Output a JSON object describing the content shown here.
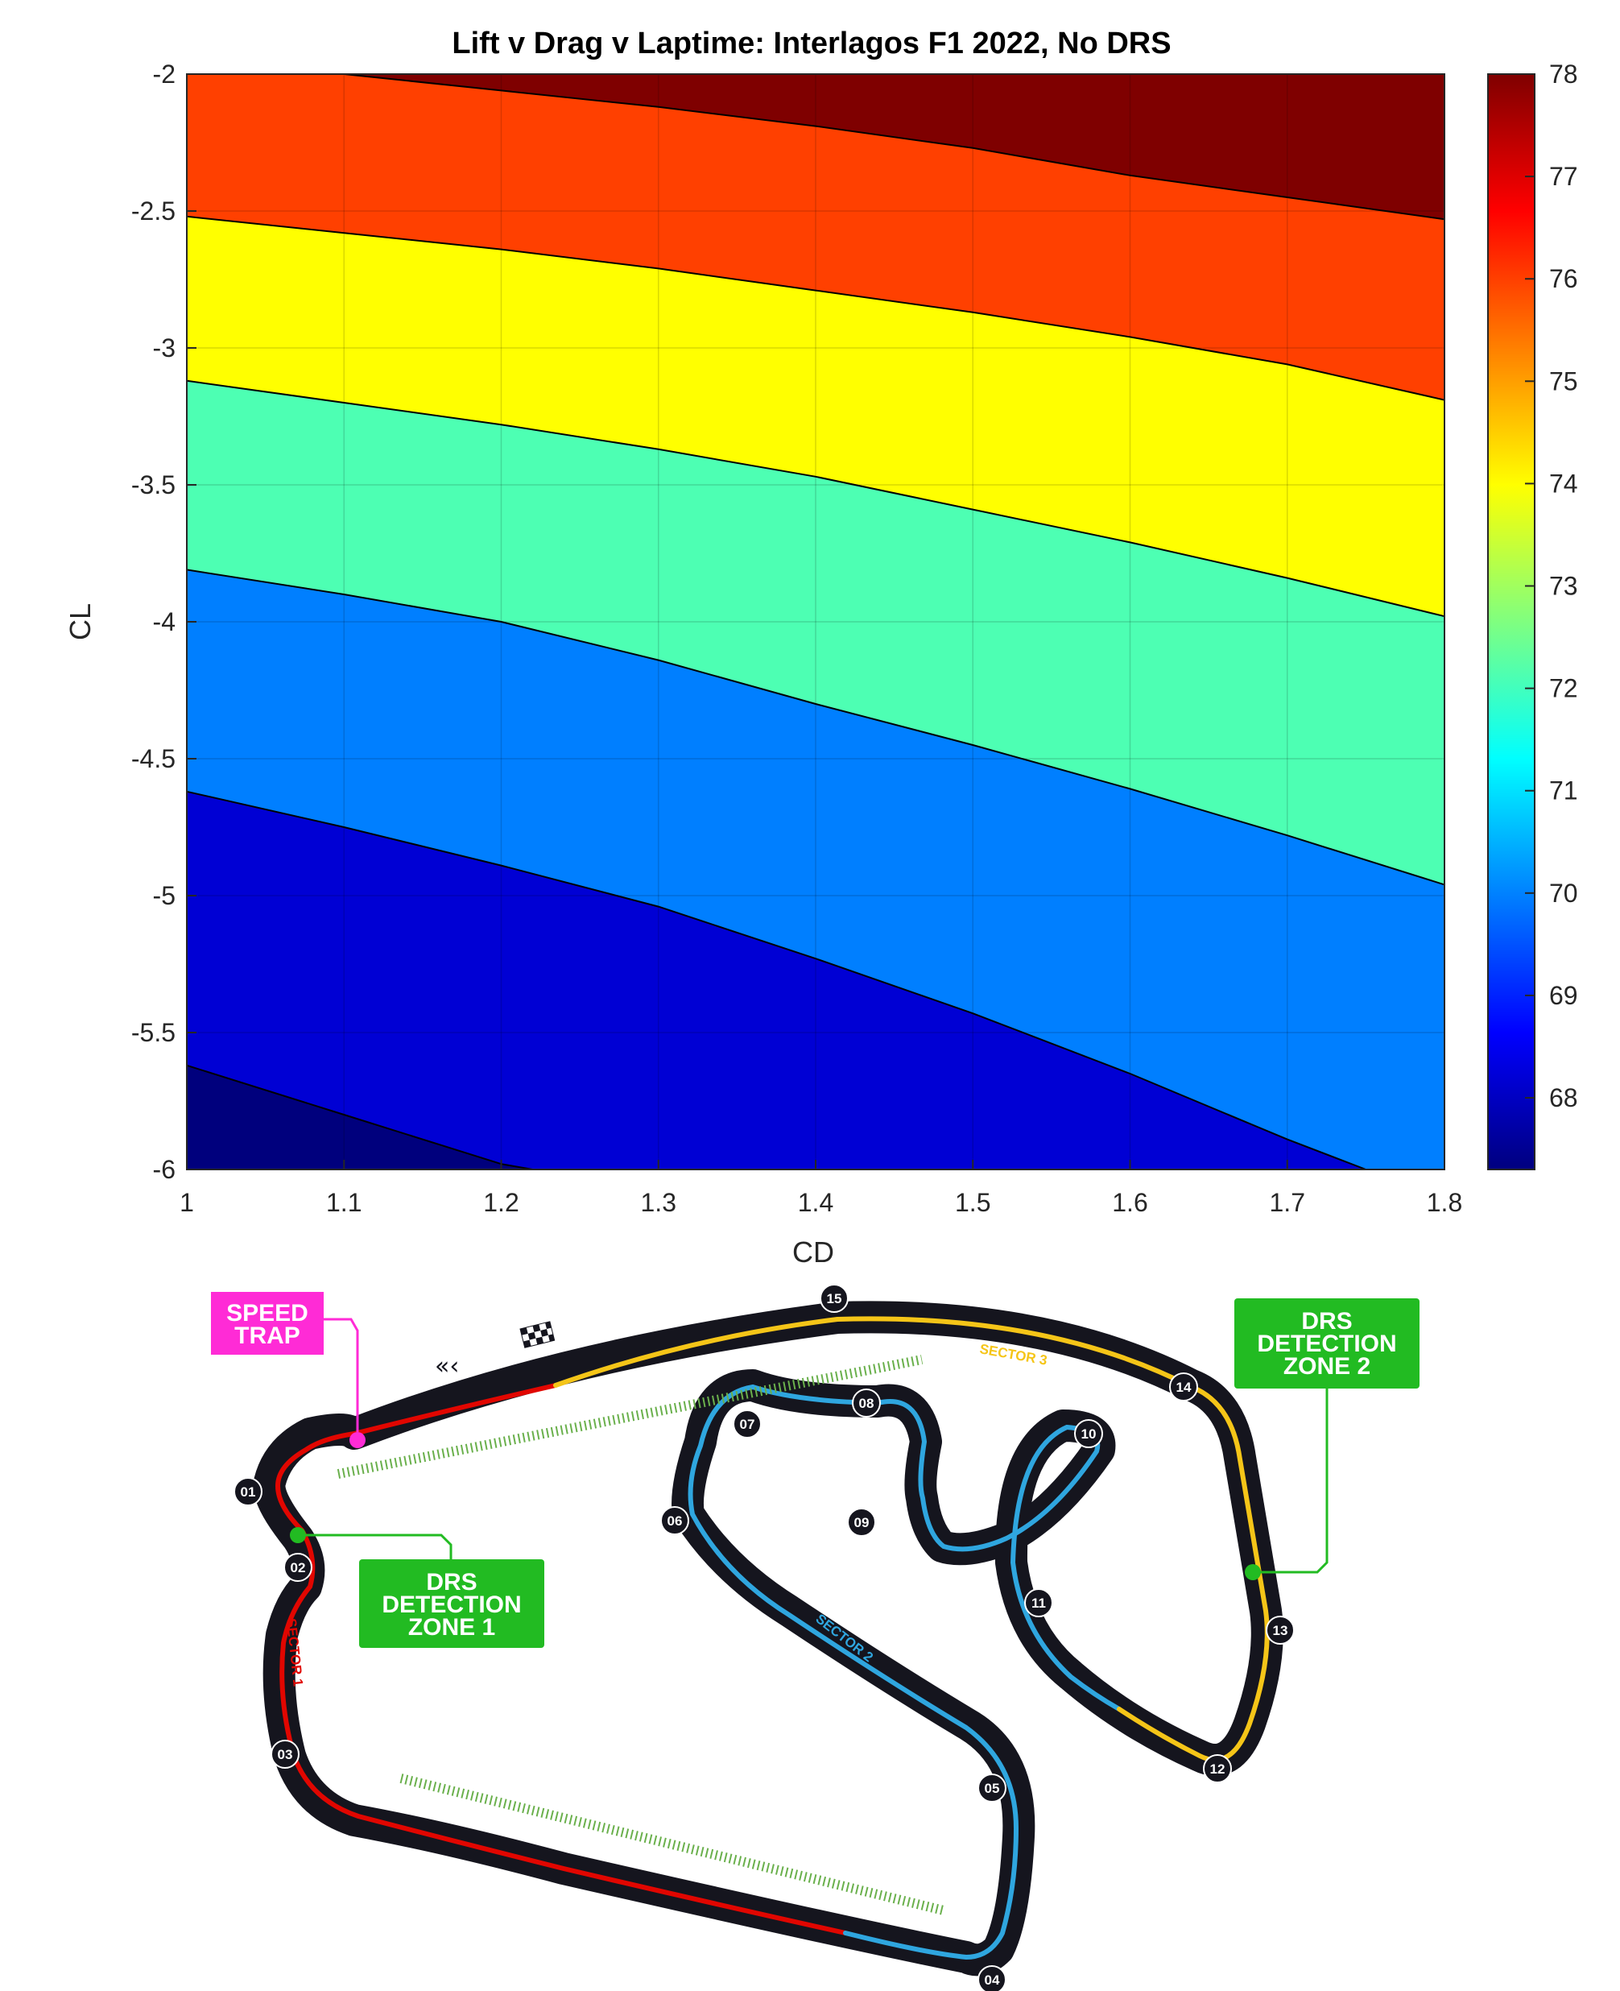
{
  "chart_data": {
    "type": "contour",
    "title": "Lift v Drag v Laptime: Interlagos F1 2022, No DRS",
    "xlabel": "CD",
    "ylabel": "CL",
    "xlim": [
      1,
      1.8
    ],
    "ylim": [
      -6,
      -2
    ],
    "x_ticks": [
      "1",
      "1.1",
      "1.2",
      "1.3",
      "1.4",
      "1.5",
      "1.6",
      "1.7",
      "1.8"
    ],
    "y_ticks": [
      "-2",
      "-2.5",
      "-3",
      "-3.5",
      "-4",
      "-4.5",
      "-5",
      "-5.5",
      "-6"
    ],
    "colorbar_ticks": [
      "78",
      "77",
      "76",
      "75",
      "74",
      "73",
      "72",
      "71",
      "70",
      "69",
      "68"
    ],
    "colorbar_range": [
      67.3,
      78
    ],
    "colormap": "jet",
    "grid": true,
    "contour_levels": [
      68,
      70,
      72,
      74,
      76,
      78
    ],
    "contour_lines": [
      {
        "level": 78,
        "points": [
          [
            1.1,
            -2.0
          ],
          [
            1.2,
            -2.06
          ],
          [
            1.3,
            -2.12
          ],
          [
            1.4,
            -2.19
          ],
          [
            1.5,
            -2.27
          ],
          [
            1.6,
            -2.37
          ],
          [
            1.7,
            -2.45
          ],
          [
            1.8,
            -2.53
          ]
        ]
      },
      {
        "level": 76,
        "points": [
          [
            1.0,
            -2.52
          ],
          [
            1.1,
            -2.58
          ],
          [
            1.2,
            -2.64
          ],
          [
            1.3,
            -2.71
          ],
          [
            1.4,
            -2.79
          ],
          [
            1.5,
            -2.87
          ],
          [
            1.6,
            -2.96
          ],
          [
            1.7,
            -3.06
          ],
          [
            1.8,
            -3.19
          ]
        ]
      },
      {
        "level": 74,
        "points": [
          [
            1.0,
            -3.12
          ],
          [
            1.1,
            -3.2
          ],
          [
            1.2,
            -3.28
          ],
          [
            1.3,
            -3.37
          ],
          [
            1.4,
            -3.47
          ],
          [
            1.5,
            -3.59
          ],
          [
            1.6,
            -3.71
          ],
          [
            1.7,
            -3.84
          ],
          [
            1.8,
            -3.98
          ]
        ]
      },
      {
        "level": 72,
        "points": [
          [
            1.0,
            -3.81
          ],
          [
            1.1,
            -3.9
          ],
          [
            1.2,
            -4.0
          ],
          [
            1.3,
            -4.14
          ],
          [
            1.4,
            -4.3
          ],
          [
            1.5,
            -4.45
          ],
          [
            1.6,
            -4.61
          ],
          [
            1.7,
            -4.78
          ],
          [
            1.8,
            -4.96
          ]
        ]
      },
      {
        "level": 70,
        "points": [
          [
            1.0,
            -4.62
          ],
          [
            1.1,
            -4.75
          ],
          [
            1.2,
            -4.89
          ],
          [
            1.3,
            -5.04
          ],
          [
            1.4,
            -5.23
          ],
          [
            1.5,
            -5.43
          ],
          [
            1.6,
            -5.65
          ],
          [
            1.7,
            -5.89
          ],
          [
            1.75,
            -6.0
          ]
        ]
      },
      {
        "level": 68,
        "points": [
          [
            1.0,
            -5.62
          ],
          [
            1.1,
            -5.8
          ],
          [
            1.2,
            -5.98
          ],
          [
            1.22,
            -6.0
          ]
        ]
      }
    ],
    "band_colors": {
      "below_68": "#00007d",
      "68_70": "#0000d4",
      "70_72": "#007fff",
      "72_74": "#4dffb3",
      "74_76": "#ffff00",
      "76_78": "#ff4000",
      "above_78": "#7f0000"
    }
  },
  "track_map": {
    "speed_trap_label": [
      "SPEED",
      "TRAP"
    ],
    "drs_zone_1_label": [
      "DRS",
      "DETECTION",
      "ZONE 1"
    ],
    "drs_zone_2_label": [
      "DRS",
      "DETECTION",
      "ZONE 2"
    ],
    "sector_labels": [
      "SECTOR 1",
      "SECTOR 2",
      "SECTOR 3"
    ],
    "corners": [
      "01",
      "02",
      "03",
      "04",
      "05",
      "06",
      "07",
      "08",
      "09",
      "10",
      "11",
      "12",
      "13",
      "14",
      "15"
    ],
    "colors": {
      "sector_1": "#e10600",
      "sector_2": "#2fa6df",
      "sector_3": "#f5c518",
      "drs_zone": "#6ab04c",
      "speed_trap": "#ff2bd6",
      "drs_label_bg": "#22bb22"
    }
  }
}
